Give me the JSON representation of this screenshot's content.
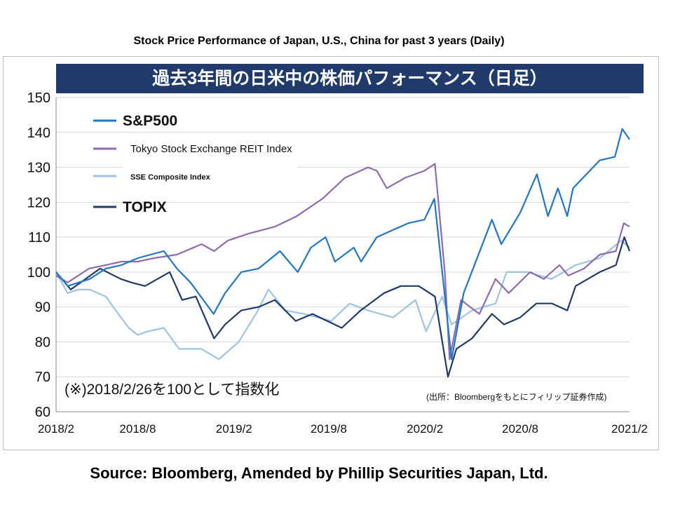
{
  "header": {
    "title": "Stock Price Performance of Japan, U.S., China for past 3 years (Daily)"
  },
  "footer": {
    "source": "Source: Bloomberg, Amended by Phillip Securities Japan, Ltd."
  },
  "colors": {
    "sp500": "#1f77c8",
    "reit": "#8e6bb0",
    "sse": "#9dc3e6",
    "topix": "#1f3a6b",
    "banner": "#1f3a6b",
    "grid": "#d9d9d9"
  },
  "chart_data": {
    "type": "line",
    "title": "過去3年間の日米中の株価パフォーマンス（日足）",
    "note": "(※)2018/2/26を100として指数化",
    "credit": "(出所：Bloombergをもとにフィリップ証券作成)",
    "ylim": [
      60,
      150
    ],
    "yticks": [
      150,
      140,
      130,
      120,
      110,
      100,
      90,
      80,
      70,
      60
    ],
    "xlim": [
      "2018-02-26",
      "2021-02-26"
    ],
    "xticks": [
      {
        "date": "2018-02-26",
        "label": "2018/2"
      },
      {
        "date": "2018-08-01",
        "label": "2018/8"
      },
      {
        "date": "2019-02-01",
        "label": "2019/2"
      },
      {
        "date": "2019-08-01",
        "label": "2019/8"
      },
      {
        "date": "2020-02-01",
        "label": "2020/2"
      },
      {
        "date": "2020-08-01",
        "label": "2020/8"
      },
      {
        "date": "2021-02-26",
        "label": "2021/2"
      }
    ],
    "grid": true,
    "legend_position": "top-left",
    "series": [
      {
        "name": "S&P500",
        "color": "#1f77c8",
        "legend_style": "large",
        "points": [
          [
            "2018-02-26",
            100
          ],
          [
            "2018-03-20",
            96
          ],
          [
            "2018-04-10",
            97
          ],
          [
            "2018-05-01",
            98
          ],
          [
            "2018-06-01",
            101
          ],
          [
            "2018-07-01",
            102
          ],
          [
            "2018-08-01",
            104
          ],
          [
            "2018-09-20",
            106
          ],
          [
            "2018-10-15",
            101
          ],
          [
            "2018-11-10",
            97
          ],
          [
            "2018-12-24",
            88
          ],
          [
            "2019-01-15",
            94
          ],
          [
            "2019-02-15",
            100
          ],
          [
            "2019-03-20",
            101
          ],
          [
            "2019-04-30",
            106
          ],
          [
            "2019-06-03",
            100
          ],
          [
            "2019-06-28",
            107
          ],
          [
            "2019-07-26",
            110
          ],
          [
            "2019-08-13",
            103
          ],
          [
            "2019-09-18",
            107
          ],
          [
            "2019-10-02",
            103
          ],
          [
            "2019-11-01",
            110
          ],
          [
            "2019-12-31",
            114
          ],
          [
            "2020-01-31",
            115
          ],
          [
            "2020-02-19",
            121
          ],
          [
            "2020-03-23",
            75
          ],
          [
            "2020-04-15",
            94
          ],
          [
            "2020-06-08",
            115
          ],
          [
            "2020-06-26",
            108
          ],
          [
            "2020-08-01",
            117
          ],
          [
            "2020-09-02",
            128
          ],
          [
            "2020-09-23",
            116
          ],
          [
            "2020-10-12",
            124
          ],
          [
            "2020-10-30",
            116
          ],
          [
            "2020-11-10",
            124
          ],
          [
            "2020-12-31",
            132
          ],
          [
            "2021-01-29",
            133
          ],
          [
            "2021-02-12",
            141
          ],
          [
            "2021-02-26",
            138
          ]
        ]
      },
      {
        "name": "Tokyo Stock Exchange REIT Index",
        "color": "#8e6bb0",
        "legend_style": "small",
        "points": [
          [
            "2018-02-26",
            99
          ],
          [
            "2018-03-20",
            97
          ],
          [
            "2018-04-30",
            101
          ],
          [
            "2018-06-01",
            102
          ],
          [
            "2018-07-01",
            103
          ],
          [
            "2018-08-01",
            103
          ],
          [
            "2018-09-01",
            104
          ],
          [
            "2018-10-15",
            105
          ],
          [
            "2018-12-01",
            108
          ],
          [
            "2018-12-25",
            106
          ],
          [
            "2019-01-20",
            109
          ],
          [
            "2019-03-01",
            111
          ],
          [
            "2019-04-20",
            113
          ],
          [
            "2019-06-01",
            116
          ],
          [
            "2019-07-20",
            121
          ],
          [
            "2019-09-01",
            127
          ],
          [
            "2019-10-15",
            130
          ],
          [
            "2019-11-01",
            129
          ],
          [
            "2019-11-20",
            124
          ],
          [
            "2019-12-25",
            127
          ],
          [
            "2020-01-31",
            129
          ],
          [
            "2020-02-20",
            131
          ],
          [
            "2020-03-10",
            100
          ],
          [
            "2020-03-19",
            75
          ],
          [
            "2020-04-10",
            92
          ],
          [
            "2020-05-15",
            88
          ],
          [
            "2020-06-15",
            98
          ],
          [
            "2020-07-10",
            94
          ],
          [
            "2020-08-20",
            100
          ],
          [
            "2020-09-15",
            98
          ],
          [
            "2020-10-15",
            102
          ],
          [
            "2020-11-01",
            99
          ],
          [
            "2020-12-01",
            101
          ],
          [
            "2020-12-31",
            105
          ],
          [
            "2021-01-31",
            106
          ],
          [
            "2021-02-15",
            114
          ],
          [
            "2021-02-26",
            113
          ]
        ]
      },
      {
        "name": "SSE Composite Index",
        "color": "#9dc3e6",
        "legend_style": "tiny",
        "points": [
          [
            "2018-02-26",
            100
          ],
          [
            "2018-03-20",
            94
          ],
          [
            "2018-04-10",
            95
          ],
          [
            "2018-05-01",
            95
          ],
          [
            "2018-06-01",
            93
          ],
          [
            "2018-06-25",
            88
          ],
          [
            "2018-07-15",
            84
          ],
          [
            "2018-08-01",
            82
          ],
          [
            "2018-08-20",
            83
          ],
          [
            "2018-09-20",
            84
          ],
          [
            "2018-10-19",
            78
          ],
          [
            "2018-12-01",
            78
          ],
          [
            "2019-01-03",
            75
          ],
          [
            "2019-02-10",
            80
          ],
          [
            "2019-03-15",
            88
          ],
          [
            "2019-04-08",
            95
          ],
          [
            "2019-05-10",
            89
          ],
          [
            "2019-06-15",
            88
          ],
          [
            "2019-08-06",
            86
          ],
          [
            "2019-09-10",
            91
          ],
          [
            "2019-10-15",
            89
          ],
          [
            "2019-12-02",
            87
          ],
          [
            "2020-01-14",
            92
          ],
          [
            "2020-02-03",
            83
          ],
          [
            "2020-03-05",
            93
          ],
          [
            "2020-03-23",
            85
          ],
          [
            "2020-05-01",
            89
          ],
          [
            "2020-06-15",
            91
          ],
          [
            "2020-07-06",
            100
          ],
          [
            "2020-08-15",
            100
          ],
          [
            "2020-09-30",
            98
          ],
          [
            "2020-11-15",
            102
          ],
          [
            "2020-12-31",
            104
          ],
          [
            "2021-02-10",
            109
          ],
          [
            "2021-02-26",
            107
          ]
        ]
      },
      {
        "name": "TOPIX",
        "color": "#1f3a6b",
        "legend_style": "large",
        "points": [
          [
            "2018-02-26",
            100
          ],
          [
            "2018-03-26",
            95
          ],
          [
            "2018-05-21",
            101
          ],
          [
            "2018-06-30",
            98
          ],
          [
            "2018-07-20",
            97
          ],
          [
            "2018-08-15",
            96
          ],
          [
            "2018-10-01",
            100
          ],
          [
            "2018-10-25",
            92
          ],
          [
            "2018-11-20",
            93
          ],
          [
            "2018-12-25",
            81
          ],
          [
            "2019-01-15",
            85
          ],
          [
            "2019-02-15",
            89
          ],
          [
            "2019-03-20",
            90
          ],
          [
            "2019-04-20",
            92
          ],
          [
            "2019-05-30",
            86
          ],
          [
            "2019-07-01",
            88
          ],
          [
            "2019-08-26",
            84
          ],
          [
            "2019-10-01",
            89
          ],
          [
            "2019-11-15",
            94
          ],
          [
            "2019-12-17",
            96
          ],
          [
            "2020-01-20",
            96
          ],
          [
            "2020-02-20",
            93
          ],
          [
            "2020-03-16",
            70
          ],
          [
            "2020-04-01",
            78
          ],
          [
            "2020-05-01",
            81
          ],
          [
            "2020-06-08",
            88
          ],
          [
            "2020-07-01",
            85
          ],
          [
            "2020-08-01",
            87
          ],
          [
            "2020-09-01",
            91
          ],
          [
            "2020-10-01",
            91
          ],
          [
            "2020-10-30",
            89
          ],
          [
            "2020-11-15",
            96
          ],
          [
            "2020-12-31",
            100
          ],
          [
            "2021-01-31",
            102
          ],
          [
            "2021-02-16",
            110
          ],
          [
            "2021-02-26",
            106
          ]
        ]
      }
    ]
  }
}
